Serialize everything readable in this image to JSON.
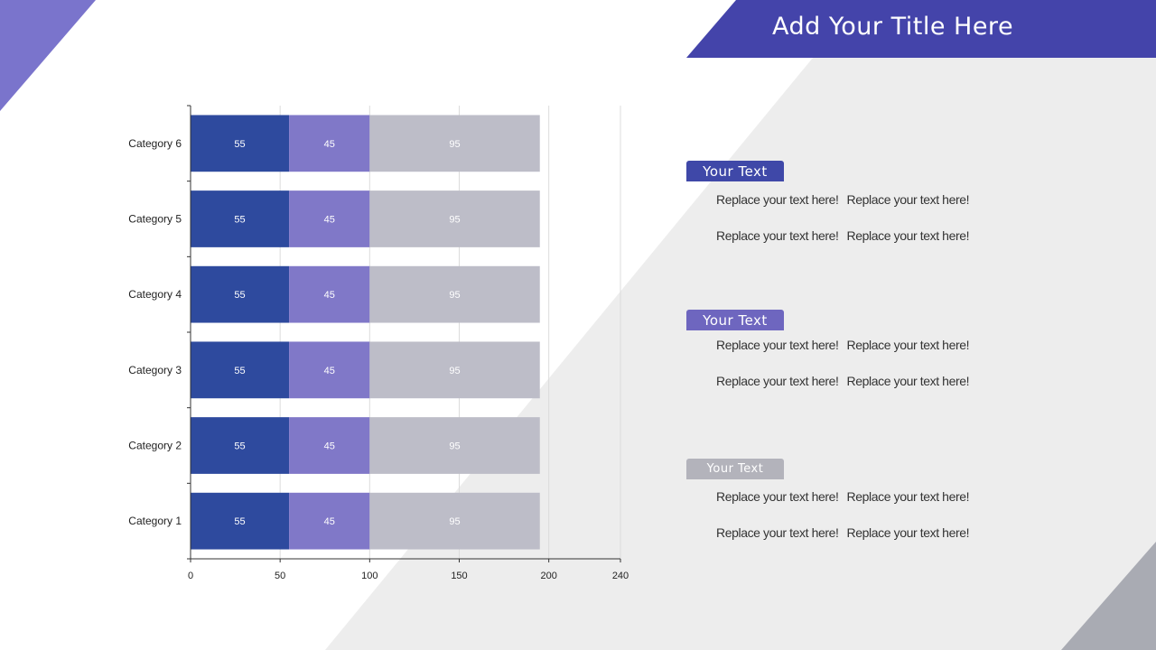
{
  "title": "Add Your Title Here",
  "colors": {
    "banner": "#4444aa",
    "corner_top_left": "#7a74cc",
    "panel_gray": "#ededed",
    "corner_bottom_right": "#a9abb3",
    "series": [
      "#2e4a9e",
      "#8078c8",
      "#bdbdc8"
    ],
    "tags": [
      "#3f48a8",
      "#6e66bf",
      "#b3b3bb"
    ]
  },
  "chart_data": {
    "type": "bar",
    "orientation": "horizontal",
    "stacked": true,
    "categories": [
      "Category 1",
      "Category 2",
      "Category 3",
      "Category 4",
      "Category 5",
      "Category 6"
    ],
    "series": [
      {
        "values": [
          55,
          55,
          55,
          55,
          55,
          55
        ]
      },
      {
        "values": [
          45,
          45,
          45,
          45,
          45,
          45
        ]
      },
      {
        "values": [
          95,
          95,
          95,
          95,
          95,
          95
        ]
      }
    ],
    "xticks": [
      0,
      50,
      100,
      150,
      200,
      240
    ],
    "xlim": [
      0,
      240
    ],
    "grid": true,
    "data_labels": true
  },
  "sections": [
    {
      "tag": "Your Text",
      "lines": [
        [
          "Replace your text here!",
          "Replace your text here!"
        ],
        [
          "Replace your text here!",
          "Replace your text here!"
        ]
      ]
    },
    {
      "tag": "Your Text",
      "lines": [
        [
          "Replace your text here!",
          "Replace your text here!"
        ],
        [
          "Replace your text here!",
          "Replace your text here!"
        ]
      ]
    },
    {
      "tag": "Your Text",
      "lines": [
        [
          "Replace your text here!",
          "Replace your text here!"
        ],
        [
          "Replace your text here!",
          "Replace your text here!"
        ]
      ]
    }
  ]
}
